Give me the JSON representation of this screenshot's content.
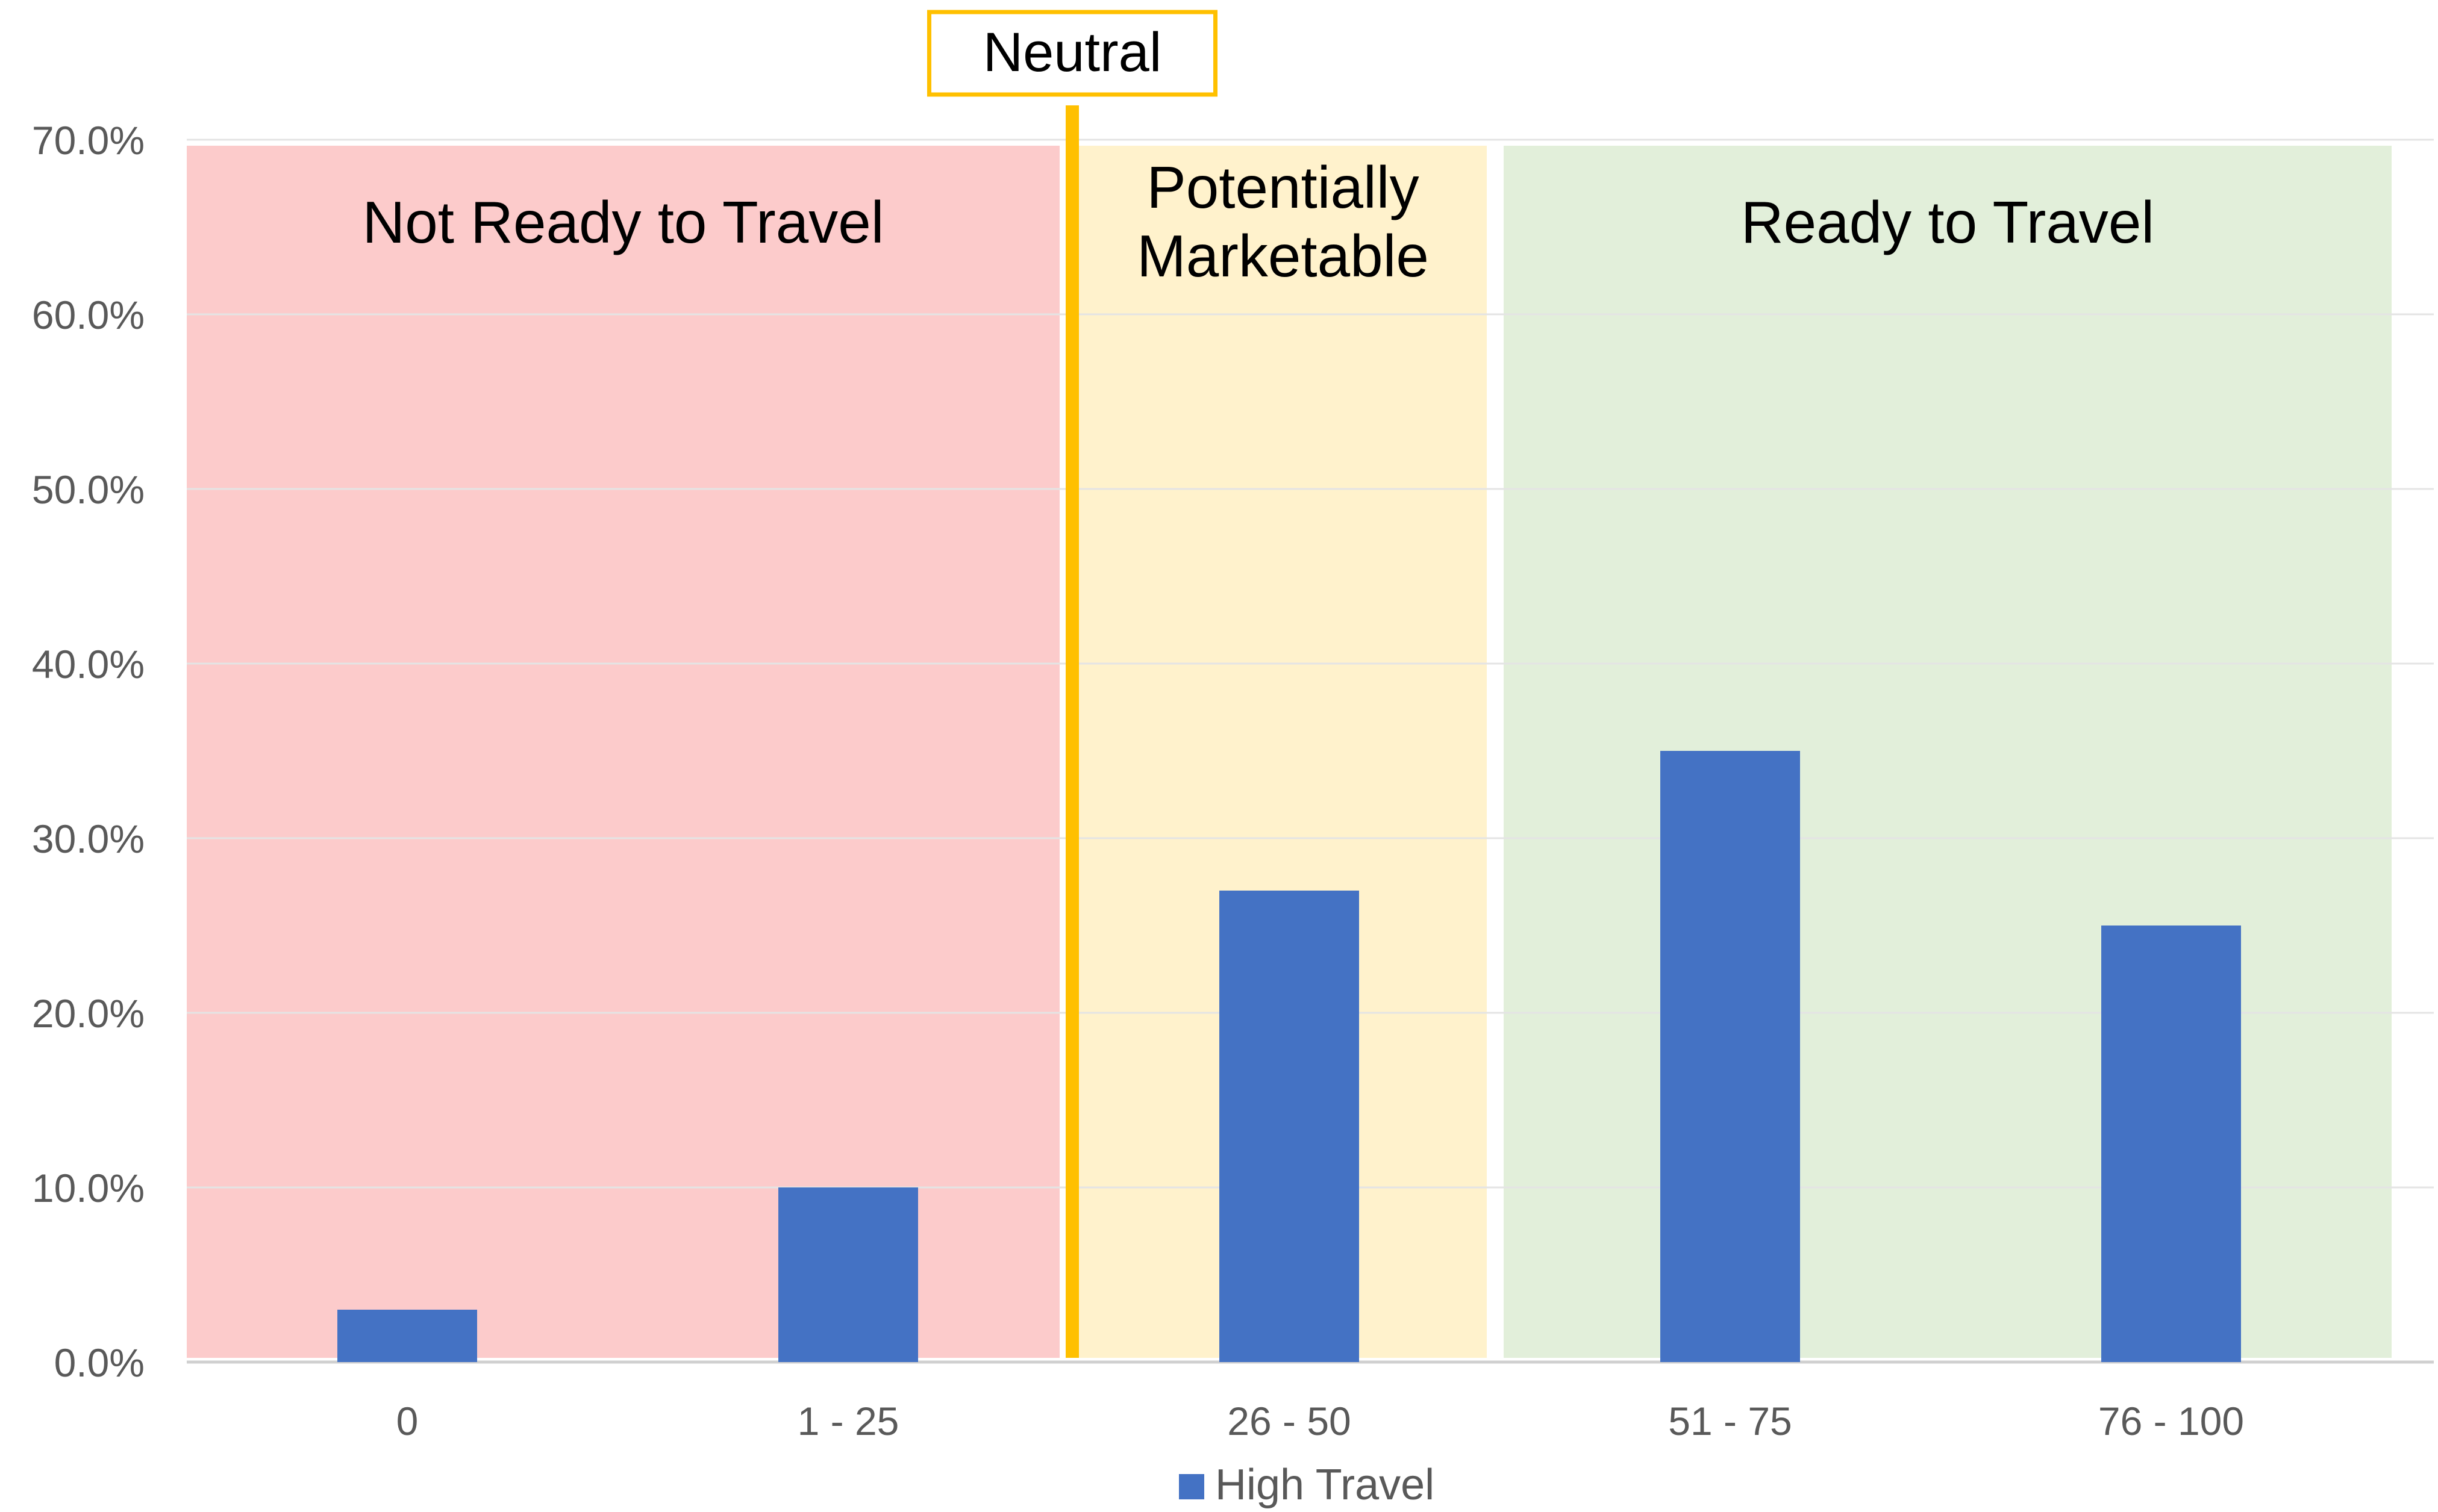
{
  "chart_data": {
    "type": "bar",
    "categories": [
      "0",
      "1 - 25",
      "26 - 50",
      "51 - 75",
      "76 - 100"
    ],
    "series": [
      {
        "name": "High Travel",
        "values": [
          3.0,
          10.0,
          27.0,
          35.0,
          25.0
        ],
        "color": "#4472C4"
      }
    ],
    "ylim": [
      0,
      70
    ],
    "yticks": [
      "0.0%",
      "10.0%",
      "20.0%",
      "30.0%",
      "40.0%",
      "50.0%",
      "60.0%",
      "70.0%"
    ],
    "grid": true,
    "legend_position": "bottom",
    "zones": [
      {
        "label_lines": [
          "Not Ready to Travel"
        ],
        "from_category": 0,
        "to_category": 1,
        "color": "#FCCBCB"
      },
      {
        "label_lines": [
          "Potentially",
          "Marketable"
        ],
        "from_category": 2,
        "to_category": 2,
        "color": "#FFF2CC"
      },
      {
        "label_lines": [
          "Ready to Travel"
        ],
        "from_category": 3,
        "to_category": 4,
        "color": "#E2EFDA"
      }
    ],
    "marker": {
      "label": "Neutral",
      "after_category": 1,
      "color": "#FFC000"
    }
  }
}
